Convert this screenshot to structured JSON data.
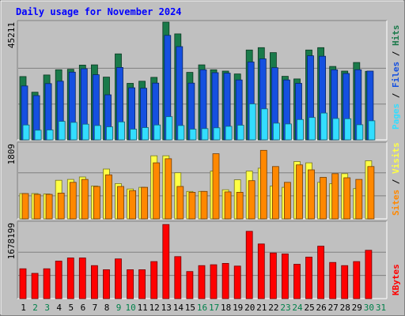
{
  "chart_data": {
    "type": "bar",
    "title": "Daily usage for November 2024",
    "x": [
      "1",
      "2",
      "3",
      "4",
      "5",
      "6",
      "7",
      "8",
      "9",
      "10",
      "11",
      "12",
      "13",
      "14",
      "15",
      "16",
      "17",
      "18",
      "19",
      "20",
      "21",
      "22",
      "23",
      "24",
      "25",
      "26",
      "27",
      "28",
      "29",
      "30",
      "31"
    ],
    "weekend_days": [
      "2",
      "3",
      "9",
      "10",
      "16",
      "17",
      "23",
      "24",
      "30",
      "31"
    ],
    "panels": [
      {
        "id": "hits-files-pages",
        "ymax_label": "45211",
        "ylim": [
          0,
          45211
        ],
        "series": [
          {
            "name": "Hits",
            "color": "#1a7a4a",
            "values": [
              24300,
              18300,
              24900,
              26900,
              27100,
              28700,
              28800,
              24100,
              33000,
              21700,
              22500,
              24000,
              45200,
              40700,
              25900,
              28800,
              26900,
              26400,
              25300,
              34500,
              35400,
              33500,
              24400,
              23400,
              34500,
              35400,
              28200,
              26400,
              29700,
              26300,
              null
            ]
          },
          {
            "name": "Files",
            "color": "#1550e0",
            "values": [
              20700,
              17000,
              21600,
              22500,
              26000,
              27300,
              25000,
              17300,
              27800,
              20000,
              19800,
              21800,
              40100,
              35800,
              21800,
              26900,
              25800,
              25600,
              23000,
              29900,
              31100,
              27700,
              23000,
              21700,
              32300,
              32100,
              26900,
              25500,
              26900,
              26400,
              null
            ]
          },
          {
            "name": "Pages",
            "color": "#33ddff",
            "values": [
              5700,
              3700,
              3800,
              7100,
              6700,
              6000,
              5500,
              5000,
              6900,
              4100,
              4700,
              5700,
              8900,
              5500,
              4100,
              4300,
              4600,
              5200,
              5600,
              13800,
              11900,
              6400,
              6100,
              7800,
              8600,
              10300,
              8200,
              8100,
              5800,
              7300,
              null
            ]
          }
        ],
        "side_labels": [
          "Pages",
          "Files",
          "Hits"
        ]
      },
      {
        "id": "sites-visits",
        "ymax_label": "1809",
        "ylim": [
          0,
          1809
        ],
        "series": [
          {
            "name": "Visits",
            "color": "#ffff44",
            "values": [
              610,
              610,
              600,
              930,
              950,
              1010,
              790,
              1200,
              850,
              720,
              760,
              1520,
              1520,
              1110,
              660,
              660,
              1150,
              700,
              940,
              1150,
              1220,
              790,
              760,
              1380,
              1350,
              880,
              850,
              1090,
              730,
              1400,
              null
            ]
          },
          {
            "name": "Sites",
            "color": "#ff8800",
            "values": [
              610,
              590,
              590,
              620,
              880,
              950,
              780,
              1060,
              780,
              680,
              760,
              1350,
              1450,
              780,
              640,
              660,
              1570,
              650,
              640,
              920,
              1650,
              1260,
              880,
              1300,
              1180,
              1000,
              1090,
              990,
              950,
              1260,
              null
            ]
          }
        ],
        "side_labels": [
          "Sites",
          "Visits"
        ]
      },
      {
        "id": "kbytes",
        "ymax_label": "1678199",
        "ylim": [
          0,
          1678199
        ],
        "series": [
          {
            "name": "KBytes",
            "color": "#ff0000",
            "values": [
              660000,
              560000,
              660000,
              830000,
              900000,
              900000,
              730000,
              640000,
              880000,
              640000,
              640000,
              820000,
              1640000,
              930000,
              600000,
              730000,
              750000,
              780000,
              720000,
              1490000,
              1210000,
              1010000,
              990000,
              760000,
              920000,
              1160000,
              800000,
              730000,
              820000,
              1070000,
              null
            ]
          }
        ],
        "side_labels": [
          "KBytes"
        ]
      }
    ],
    "grid": true
  },
  "colors": {
    "background": "#c0c0c0",
    "plot_area": "#c0c0c0",
    "title": "#0000ff",
    "weekday_label": "#000000",
    "weekend_label": "#00804a"
  }
}
